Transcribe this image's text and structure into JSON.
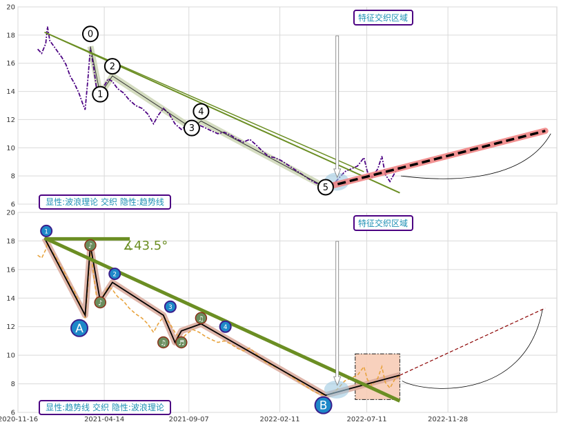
{
  "chart_data": [
    {
      "type": "line",
      "panel": "top",
      "ylim": [
        6,
        20
      ],
      "y_ticks": [
        6,
        8,
        10,
        12,
        14,
        16,
        18,
        20
      ],
      "grid": true,
      "annotation_box": "特征交织区域",
      "legend_text": "显性:波浪理论 交织 隐性:趋势线",
      "colors": {
        "price": "#4b0082",
        "trend": "#6b8e23",
        "wave_fill": "#c9d3b0",
        "projection": "#f08080",
        "highlight": "#9ecae1",
        "box_border": "#4b0082",
        "box_text": "#1e90b4"
      },
      "series": [
        {
          "values": [
            [
              "2020-12-20",
              17.0
            ],
            [
              "2020-12-27",
              16.7
            ],
            [
              "2021-01-03",
              17.4
            ],
            [
              "2021-01-06",
              18.6
            ],
            [
              "2021-01-10",
              17.6
            ],
            [
              "2021-01-17",
              17.2
            ],
            [
              "2021-01-24",
              16.8
            ],
            [
              "2021-01-31",
              16.4
            ],
            [
              "2021-02-07",
              15.9
            ],
            [
              "2021-02-14",
              15.1
            ],
            [
              "2021-02-21",
              14.6
            ],
            [
              "2021-03-01",
              13.9
            ],
            [
              "2021-03-08",
              13.1
            ],
            [
              "2021-03-12",
              12.7
            ],
            [
              "2021-03-17",
              15.0
            ],
            [
              "2021-03-21",
              17.1
            ],
            [
              "2021-03-27",
              15.6
            ],
            [
              "2021-04-01",
              14.1
            ],
            [
              "2021-04-07",
              13.7
            ],
            [
              "2021-04-14",
              14.4
            ],
            [
              "2021-04-21",
              14.9
            ],
            [
              "2021-04-28",
              14.7
            ],
            [
              "2021-05-07",
              14.2
            ],
            [
              "2021-05-17",
              13.9
            ],
            [
              "2021-05-27",
              13.4
            ],
            [
              "2021-06-07",
              13.0
            ],
            [
              "2021-06-18",
              12.8
            ],
            [
              "2021-06-28",
              12.4
            ],
            [
              "2021-07-08",
              11.7
            ],
            [
              "2021-07-16",
              12.3
            ],
            [
              "2021-07-25",
              12.8
            ],
            [
              "2021-08-04",
              12.4
            ],
            [
              "2021-08-14",
              11.7
            ],
            [
              "2021-08-25",
              11.3
            ],
            [
              "2021-09-03",
              11.6
            ],
            [
              "2021-09-14",
              11.8
            ],
            [
              "2021-09-25",
              11.6
            ],
            [
              "2021-10-06",
              11.4
            ],
            [
              "2021-10-16",
              11.2
            ],
            [
              "2021-10-27",
              11.0
            ],
            [
              "2021-11-07",
              11.1
            ],
            [
              "2021-11-18",
              10.9
            ],
            [
              "2021-11-29",
              10.6
            ],
            [
              "2021-12-10",
              10.4
            ],
            [
              "2021-12-21",
              10.6
            ],
            [
              "2022-01-01",
              10.2
            ],
            [
              "2022-01-11",
              9.8
            ],
            [
              "2022-01-22",
              9.4
            ],
            [
              "2022-02-02",
              9.3
            ],
            [
              "2022-02-13",
              9.1
            ],
            [
              "2022-02-24",
              8.8
            ],
            [
              "2022-03-07",
              8.5
            ],
            [
              "2022-03-18",
              8.2
            ],
            [
              "2022-03-29",
              7.9
            ],
            [
              "2022-04-09",
              7.6
            ],
            [
              "2022-04-20",
              7.4
            ],
            [
              "2022-05-01",
              7.2
            ],
            [
              "2022-05-12",
              7.3
            ],
            [
              "2022-05-23",
              7.8
            ],
            [
              "2022-06-03",
              8.3
            ],
            [
              "2022-06-14",
              8.5
            ],
            [
              "2022-06-25",
              8.7
            ],
            [
              "2022-07-06",
              9.3
            ],
            [
              "2022-07-12",
              8.3
            ],
            [
              "2022-07-20",
              7.9
            ],
            [
              "2022-07-30",
              8.5
            ],
            [
              "2022-08-06",
              9.4
            ],
            [
              "2022-08-12",
              8.1
            ],
            [
              "2022-08-20",
              7.6
            ],
            [
              "2022-08-28",
              8.2
            ],
            [
              "2022-09-06",
              8.7
            ]
          ]
        }
      ],
      "waves": [
        {
          "label": "0",
          "x": "2021-03-21",
          "y": 17.2
        },
        {
          "label": "1",
          "x": "2021-04-07",
          "y": 13.8
        },
        {
          "label": "2",
          "x": "2021-04-28",
          "y": 15.1
        },
        {
          "label": "3",
          "x": "2021-09-12",
          "y": 11.4
        },
        {
          "label": "4",
          "x": "2021-09-28",
          "y": 11.9
        },
        {
          "label": "5",
          "x": "2022-05-01",
          "y": 7.2
        }
      ],
      "trend_line": {
        "x0": "2021-01-01",
        "y0": 18.2,
        "x1": "2022-09-06",
        "y1": 6.8
      },
      "projection": {
        "x0": "2022-05-01",
        "y0": 7.2,
        "x1": "2023-05-15",
        "y1": 11.2
      }
    },
    {
      "type": "line",
      "panel": "bottom",
      "ylim": [
        6,
        20
      ],
      "y_ticks": [
        6,
        8,
        10,
        12,
        14,
        16,
        18,
        20
      ],
      "x_ticks": [
        "2020-11-16",
        "2021-04-14",
        "2021-09-07",
        "2022-02-11",
        "2022-07-11",
        "2022-11-28"
      ],
      "grid": true,
      "annotation_box": "特征交织区域",
      "legend_text": "显性:趋势线 交织 隐性:波浪理论",
      "angle_label": "∡43.5°",
      "colors": {
        "price": "#e8a33d",
        "trend": "#6b8e23",
        "wave_fill": "#d8a89a",
        "projection": "#8b0000",
        "rect_fill": "#f8cdb6",
        "marker_blue": "#1e88c8",
        "marker_olive": "#6b8e5e",
        "box_border": "#4b0082",
        "box_text": "#1e90b4"
      },
      "series": [
        {
          "values": [
            [
              "2020-12-20",
              17.0
            ],
            [
              "2020-12-27",
              16.8
            ],
            [
              "2021-01-03",
              17.4
            ],
            [
              "2021-01-06",
              17.9
            ],
            [
              "2021-01-10",
              17.5
            ],
            [
              "2021-01-17",
              17.1
            ],
            [
              "2021-01-24",
              16.6
            ],
            [
              "2021-01-31",
              16.1
            ],
            [
              "2021-02-07",
              15.6
            ],
            [
              "2021-02-14",
              14.9
            ],
            [
              "2021-02-21",
              14.5
            ],
            [
              "2021-03-01",
              13.8
            ],
            [
              "2021-03-08",
              13.1
            ],
            [
              "2021-03-12",
              12.6
            ],
            [
              "2021-03-17",
              15.0
            ],
            [
              "2021-03-21",
              17.5
            ],
            [
              "2021-03-27",
              15.5
            ],
            [
              "2021-04-01",
              14.0
            ],
            [
              "2021-04-07",
              13.6
            ],
            [
              "2021-04-14",
              14.3
            ],
            [
              "2021-04-21",
              14.8
            ],
            [
              "2021-04-28",
              14.6
            ],
            [
              "2021-05-07",
              14.1
            ],
            [
              "2021-05-17",
              13.8
            ],
            [
              "2021-05-27",
              13.3
            ],
            [
              "2021-06-07",
              12.9
            ],
            [
              "2021-06-18",
              12.6
            ],
            [
              "2021-06-28",
              12.2
            ],
            [
              "2021-07-08",
              11.6
            ],
            [
              "2021-07-16",
              12.2
            ],
            [
              "2021-07-25",
              12.7
            ],
            [
              "2021-08-04",
              12.3
            ],
            [
              "2021-08-14",
              11.6
            ],
            [
              "2021-08-25",
              11.1
            ],
            [
              "2021-09-03",
              11.5
            ],
            [
              "2021-09-14",
              11.8
            ],
            [
              "2021-09-25",
              11.6
            ],
            [
              "2021-10-06",
              11.3
            ],
            [
              "2021-10-16",
              11.1
            ],
            [
              "2021-10-27",
              10.9
            ],
            [
              "2021-11-07",
              11.0
            ],
            [
              "2021-11-18",
              10.8
            ],
            [
              "2021-11-29",
              10.5
            ],
            [
              "2021-12-10",
              10.3
            ],
            [
              "2021-12-21",
              10.5
            ],
            [
              "2022-01-01",
              10.1
            ],
            [
              "2022-01-11",
              9.7
            ],
            [
              "2022-01-22",
              9.4
            ],
            [
              "2022-02-02",
              9.2
            ],
            [
              "2022-02-13",
              9.0
            ],
            [
              "2022-02-24",
              8.7
            ],
            [
              "2022-03-07",
              8.4
            ],
            [
              "2022-03-18",
              8.1
            ],
            [
              "2022-03-29",
              7.8
            ],
            [
              "2022-04-09",
              7.5
            ],
            [
              "2022-04-20",
              7.3
            ],
            [
              "2022-05-01",
              7.2
            ],
            [
              "2022-05-12",
              7.3
            ],
            [
              "2022-05-23",
              7.7
            ],
            [
              "2022-06-03",
              8.2
            ],
            [
              "2022-06-14",
              8.4
            ],
            [
              "2022-06-25",
              8.6
            ],
            [
              "2022-07-06",
              9.2
            ],
            [
              "2022-07-12",
              8.3
            ],
            [
              "2022-07-20",
              7.9
            ],
            [
              "2022-07-30",
              8.4
            ],
            [
              "2022-08-06",
              9.2
            ],
            [
              "2022-08-12",
              8.1
            ],
            [
              "2022-08-20",
              7.7
            ],
            [
              "2022-08-28",
              8.3
            ],
            [
              "2022-09-06",
              8.6
            ]
          ]
        }
      ],
      "wave_path": [
        [
          "2021-01-01",
          18.2
        ],
        [
          "2021-03-12",
          12.8
        ],
        [
          "2021-03-21",
          17.7
        ],
        [
          "2021-04-07",
          13.8
        ],
        [
          "2021-04-28",
          15.1
        ],
        [
          "2021-07-25",
          12.8
        ],
        [
          "2021-08-14",
          10.9
        ],
        [
          "2021-08-25",
          11.7
        ],
        [
          "2021-09-28",
          12.2
        ],
        [
          "2022-05-01",
          7.2
        ],
        [
          "2022-09-06",
          8.6
        ]
      ],
      "horizontal_line": {
        "x0": "2021-01-01",
        "x1": "2021-05-28",
        "y": 18.15
      },
      "trend_line": {
        "x0": "2021-01-01",
        "y0": 18.2,
        "x1": "2022-09-06",
        "y1": 6.8
      },
      "rect": {
        "x0": "2022-06-21",
        "x1": "2022-09-06",
        "y0": 6.9,
        "y1": 10.1
      },
      "projection": {
        "x0": "2022-09-06",
        "y0": 8.6,
        "x1": "2023-05-15",
        "y1": 13.3
      },
      "blue_markers": [
        {
          "label": "1",
          "x": "2021-01-04",
          "y": 18.7
        },
        {
          "label": "2",
          "x": "2021-05-02",
          "y": 15.7
        },
        {
          "label": "3",
          "x": "2021-08-06",
          "y": 13.4
        },
        {
          "label": "4",
          "x": "2021-11-09",
          "y": 12.0
        }
      ],
      "olive_markers": [
        {
          "label": "♪",
          "x": "2021-03-21",
          "y": 17.7
        },
        {
          "label": "♪",
          "x": "2021-04-07",
          "y": 13.7
        },
        {
          "label": "♫",
          "x": "2021-07-25",
          "y": 10.9
        },
        {
          "label": "♬",
          "x": "2021-08-25",
          "y": 10.9
        },
        {
          "label": "♫",
          "x": "2021-09-28",
          "y": 12.6
        }
      ],
      "big_markers": [
        {
          "label": "A",
          "x": "2021-03-02",
          "y": 11.9
        },
        {
          "label": "B",
          "x": "2022-04-27",
          "y": 6.5
        }
      ]
    }
  ]
}
